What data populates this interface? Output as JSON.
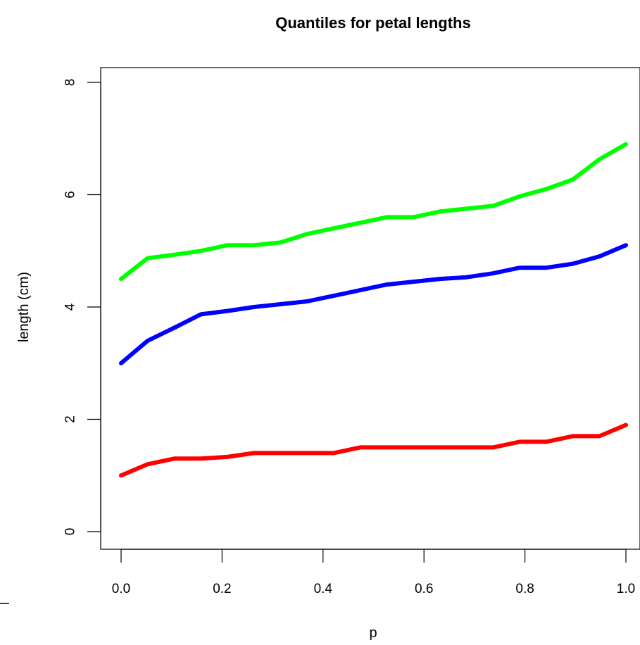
{
  "chart_data": {
    "type": "line",
    "title": "Quantiles for petal lengths",
    "xlabel": "p",
    "ylabel": "length (cm)",
    "xlim": [
      0,
      1
    ],
    "ylim": [
      0,
      8
    ],
    "x_ticks": [
      0.0,
      0.2,
      0.4,
      0.6,
      0.8,
      1.0
    ],
    "x_tick_labels": [
      "0.0",
      "0.2",
      "0.4",
      "0.6",
      "0.8",
      "1.0"
    ],
    "y_ticks": [
      0,
      2,
      4,
      6,
      8
    ],
    "y_tick_labels": [
      "0",
      "2",
      "4",
      "6",
      "8"
    ],
    "x": [
      0.0,
      0.0526,
      0.1053,
      0.1579,
      0.2105,
      0.2632,
      0.3158,
      0.3684,
      0.4211,
      0.4737,
      0.5263,
      0.5789,
      0.6316,
      0.6842,
      0.7368,
      0.7895,
      0.8421,
      0.8947,
      0.9474,
      1.0
    ],
    "grid": false,
    "legend": "none",
    "series": [
      {
        "color": "#00ff00",
        "values": [
          4.5,
          4.87,
          4.93,
          5.0,
          5.1,
          5.1,
          5.15,
          5.3,
          5.4,
          5.5,
          5.6,
          5.6,
          5.7,
          5.75,
          5.8,
          5.97,
          6.1,
          6.27,
          6.63,
          6.9
        ]
      },
      {
        "color": "#0000ff",
        "values": [
          3.0,
          3.4,
          3.63,
          3.87,
          3.93,
          4.0,
          4.05,
          4.1,
          4.2,
          4.3,
          4.4,
          4.45,
          4.5,
          4.53,
          4.6,
          4.7,
          4.7,
          4.77,
          4.9,
          5.1
        ]
      },
      {
        "color": "#ff0000",
        "values": [
          1.0,
          1.2,
          1.3,
          1.3,
          1.33,
          1.4,
          1.4,
          1.4,
          1.4,
          1.5,
          1.5,
          1.5,
          1.5,
          1.5,
          1.5,
          1.6,
          1.6,
          1.7,
          1.7,
          1.9
        ]
      }
    ]
  }
}
